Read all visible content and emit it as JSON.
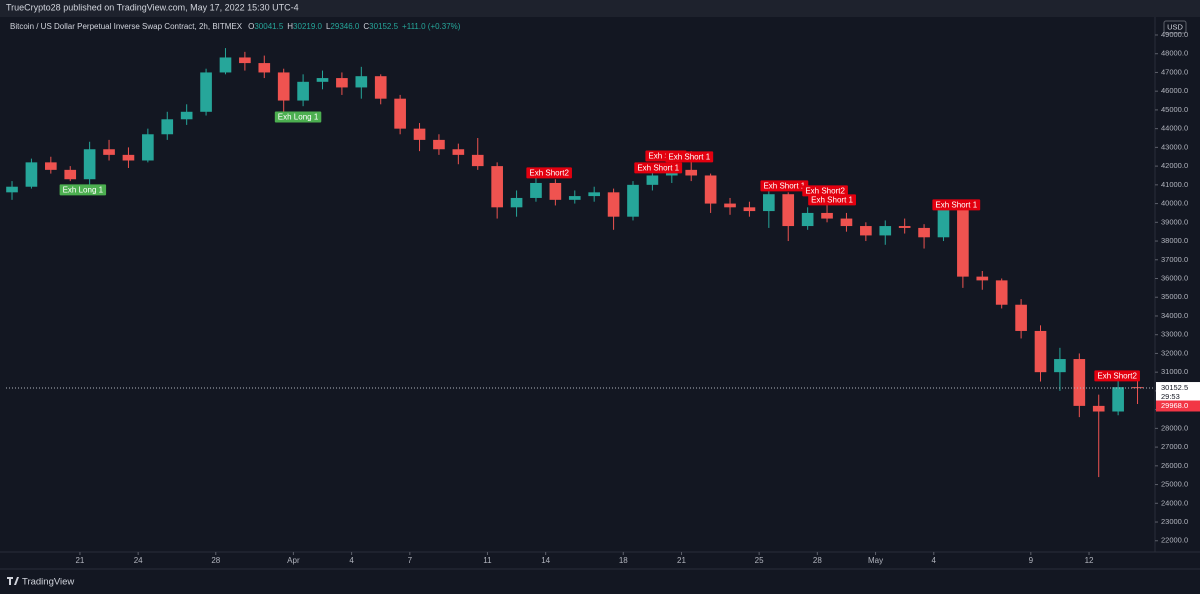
{
  "chart_data": {
    "type": "candlestick",
    "published": "TrueCrypto28 published on TradingView.com, May 17, 2022 15:30 UTC-4",
    "title": "Bitcoin / US Dollar Perpetual Inverse Swap Contract, 2h, BITMEX",
    "ohlc": [
      {
        "label": "O",
        "value": "30041.5"
      },
      {
        "label": "H",
        "value": "30219.0"
      },
      {
        "label": "L",
        "value": "29346.0"
      },
      {
        "label": "C",
        "value": "30152.5"
      }
    ],
    "change": "+111.0 (+0.37%)",
    "currency": "USD",
    "brand": "TradingView",
    "up_color": "#26a69a",
    "down_color": "#ef5350",
    "grid": false,
    "x": [
      0.5,
      1.5,
      2.5,
      3.5,
      4.5,
      5.5,
      6.5,
      7.5,
      8.5,
      9.5,
      10.5,
      11.5,
      12.5,
      13.5,
      14.5,
      15.5,
      16.5,
      17.5,
      18.5,
      19.5,
      20.5,
      21.5,
      22.5,
      23.5,
      24.5,
      25.5,
      26.5,
      27.5,
      28.5,
      29.5,
      30.5,
      31.5,
      32.5,
      33.5,
      34.5,
      35.5,
      36.5,
      37.5,
      38.5,
      39.5,
      40.5,
      41.5,
      42.5,
      43.5,
      44.5,
      45.5,
      46.5,
      47.5,
      48.5,
      49.5,
      50.5,
      51.5,
      52.5,
      53.5,
      54.5,
      55.5,
      56.5,
      57.5,
      58.5
    ],
    "open": [
      40600,
      40900,
      42200,
      41800,
      41300,
      42900,
      42600,
      42300,
      43700,
      44500,
      44900,
      47000,
      47800,
      47500,
      47000,
      45500,
      46500,
      46700,
      46200,
      46800,
      45600,
      44000,
      43400,
      42900,
      42600,
      42000,
      39800,
      40300,
      41100,
      40200,
      40400,
      40600,
      39300,
      41000,
      41500,
      41800,
      41500,
      40000,
      39800,
      39600,
      40500,
      38800,
      39500,
      39200,
      38800,
      38300,
      38800,
      38700,
      38200,
      39700,
      36100,
      35900,
      34600,
      33200,
      31000,
      31700,
      29200,
      28900,
      30200
    ],
    "high": [
      41200,
      42400,
      42500,
      42000,
      43300,
      43400,
      43000,
      44000,
      44900,
      45300,
      47200,
      48300,
      48100,
      47900,
      47200,
      46900,
      47100,
      47000,
      47300,
      46900,
      45800,
      44300,
      43700,
      43200,
      43500,
      42200,
      40700,
      41600,
      41300,
      40700,
      40900,
      40800,
      41200,
      41800,
      42300,
      42800,
      41600,
      40300,
      40100,
      40900,
      40600,
      39800,
      40300,
      39500,
      39000,
      39100,
      39200,
      38900,
      39900,
      39900,
      36400,
      36000,
      34900,
      33500,
      32300,
      32000,
      29800,
      31000,
      30800
    ],
    "low": [
      40200,
      40800,
      41600,
      41200,
      41000,
      42300,
      41900,
      42200,
      43400,
      44200,
      44700,
      46900,
      47100,
      46700,
      44800,
      45200,
      46100,
      45800,
      45600,
      45300,
      43700,
      42800,
      42600,
      42100,
      41800,
      39200,
      39300,
      40100,
      39900,
      40000,
      40100,
      38600,
      39100,
      40700,
      41100,
      41200,
      39500,
      39400,
      39300,
      38700,
      38000,
      38600,
      39000,
      38500,
      38000,
      37800,
      38400,
      37600,
      38000,
      35500,
      35400,
      34400,
      32800,
      30500,
      30000,
      28600,
      25400,
      28700,
      29300
    ],
    "close": [
      40900,
      42200,
      41800,
      41300,
      42900,
      42600,
      42300,
      43700,
      44500,
      44900,
      47000,
      47800,
      47500,
      47000,
      45500,
      46500,
      46700,
      46200,
      46800,
      45600,
      44000,
      43400,
      42900,
      42600,
      42000,
      39800,
      40300,
      41100,
      40200,
      40400,
      40600,
      39300,
      41000,
      41500,
      41800,
      41500,
      40000,
      39800,
      39600,
      40500,
      38800,
      39500,
      39200,
      38800,
      38300,
      38800,
      38700,
      38200,
      39700,
      36100,
      35900,
      34600,
      33200,
      31000,
      31700,
      29200,
      28900,
      30200,
      30152.5
    ],
    "xlim": [
      0.19,
      59.4
    ],
    "xticks": [
      {
        "value": 4,
        "label": "21"
      },
      {
        "value": 7,
        "label": "24"
      },
      {
        "value": 11,
        "label": "28"
      },
      {
        "value": 15,
        "label": "Apr"
      },
      {
        "value": 18,
        "label": "4"
      },
      {
        "value": 21,
        "label": "7"
      },
      {
        "value": 25,
        "label": "11"
      },
      {
        "value": 28,
        "label": "14"
      },
      {
        "value": 32,
        "label": "18"
      },
      {
        "value": 35,
        "label": "21"
      },
      {
        "value": 39,
        "label": "25"
      },
      {
        "value": 42,
        "label": "28"
      },
      {
        "value": 45,
        "label": "May"
      },
      {
        "value": 48,
        "label": "4"
      },
      {
        "value": 53,
        "label": "9"
      },
      {
        "value": 56,
        "label": "12"
      }
    ],
    "ylim": [
      21400,
      49960
    ],
    "yticks": [
      {
        "value": 22000,
        "label": "22000.0"
      },
      {
        "value": 23000,
        "label": "23000.0"
      },
      {
        "value": 24000,
        "label": "24000.0"
      },
      {
        "value": 25000,
        "label": "25000.0"
      },
      {
        "value": 26000,
        "label": "26000.0"
      },
      {
        "value": 27000,
        "label": "27000.0"
      },
      {
        "value": 28000,
        "label": "28000.0"
      },
      {
        "value": 29000,
        "label": "29000.0"
      },
      {
        "value": 30000,
        "label": "30000.0"
      },
      {
        "value": 31000,
        "label": "31000.0"
      },
      {
        "value": 32000,
        "label": "32000.0"
      },
      {
        "value": 33000,
        "label": "33000.0"
      },
      {
        "value": 34000,
        "label": "34000.0"
      },
      {
        "value": 35000,
        "label": "35000.0"
      },
      {
        "value": 36000,
        "label": "36000.0"
      },
      {
        "value": 37000,
        "label": "37000.0"
      },
      {
        "value": 38000,
        "label": "38000.0"
      },
      {
        "value": 39000,
        "label": "39000.0"
      },
      {
        "value": 40000,
        "label": "40000.0"
      },
      {
        "value": 41000,
        "label": "41000.0"
      },
      {
        "value": 42000,
        "label": "42000.0"
      },
      {
        "value": 43000,
        "label": "43000.0"
      },
      {
        "value": 44000,
        "label": "44000.0"
      },
      {
        "value": 45000,
        "label": "45000.0"
      },
      {
        "value": 46000,
        "label": "46000.0"
      },
      {
        "value": 47000,
        "label": "47000.0"
      },
      {
        "value": 48000,
        "label": "48000.0"
      },
      {
        "value": 49000,
        "label": "49000.0"
      }
    ],
    "last_price": {
      "value": 30152.5,
      "countdown": "29:53"
    },
    "marker_price": {
      "value": 29968,
      "label": "29968.0"
    },
    "annotations": [
      {
        "text": "Exh Long 1",
        "x": 4.15,
        "y": 40730,
        "color": "#4caf50"
      },
      {
        "text": "Exh Long 1",
        "x": 15.24,
        "y": 44624,
        "color": "#4caf50"
      },
      {
        "text": "Exh Short2",
        "x": 28.18,
        "y": 41636,
        "color": "#e3000f"
      },
      {
        "text": "Exh Short 1",
        "x": 33.8,
        "y": 41903,
        "color": "#e3000f"
      },
      {
        "text": "Exh Short",
        "x": 34.2,
        "y": 42543,
        "color": "#e3000f"
      },
      {
        "text": "Exh Short 1",
        "x": 35.4,
        "y": 42490,
        "color": "#e3000f"
      },
      {
        "text": "Exh Short 1",
        "x": 40.3,
        "y": 40943,
        "color": "#e3000f"
      },
      {
        "text": "Exh Short2",
        "x": 42.4,
        "y": 40676,
        "color": "#e3000f"
      },
      {
        "text": "Exh Short 1",
        "x": 42.76,
        "y": 40196,
        "color": "#e3000f"
      },
      {
        "text": "Exh Short 1",
        "x": 49.16,
        "y": 39930,
        "color": "#e3000f"
      },
      {
        "text": "Exh Short2",
        "x": 57.45,
        "y": 30805,
        "color": "#e3000f"
      }
    ]
  }
}
